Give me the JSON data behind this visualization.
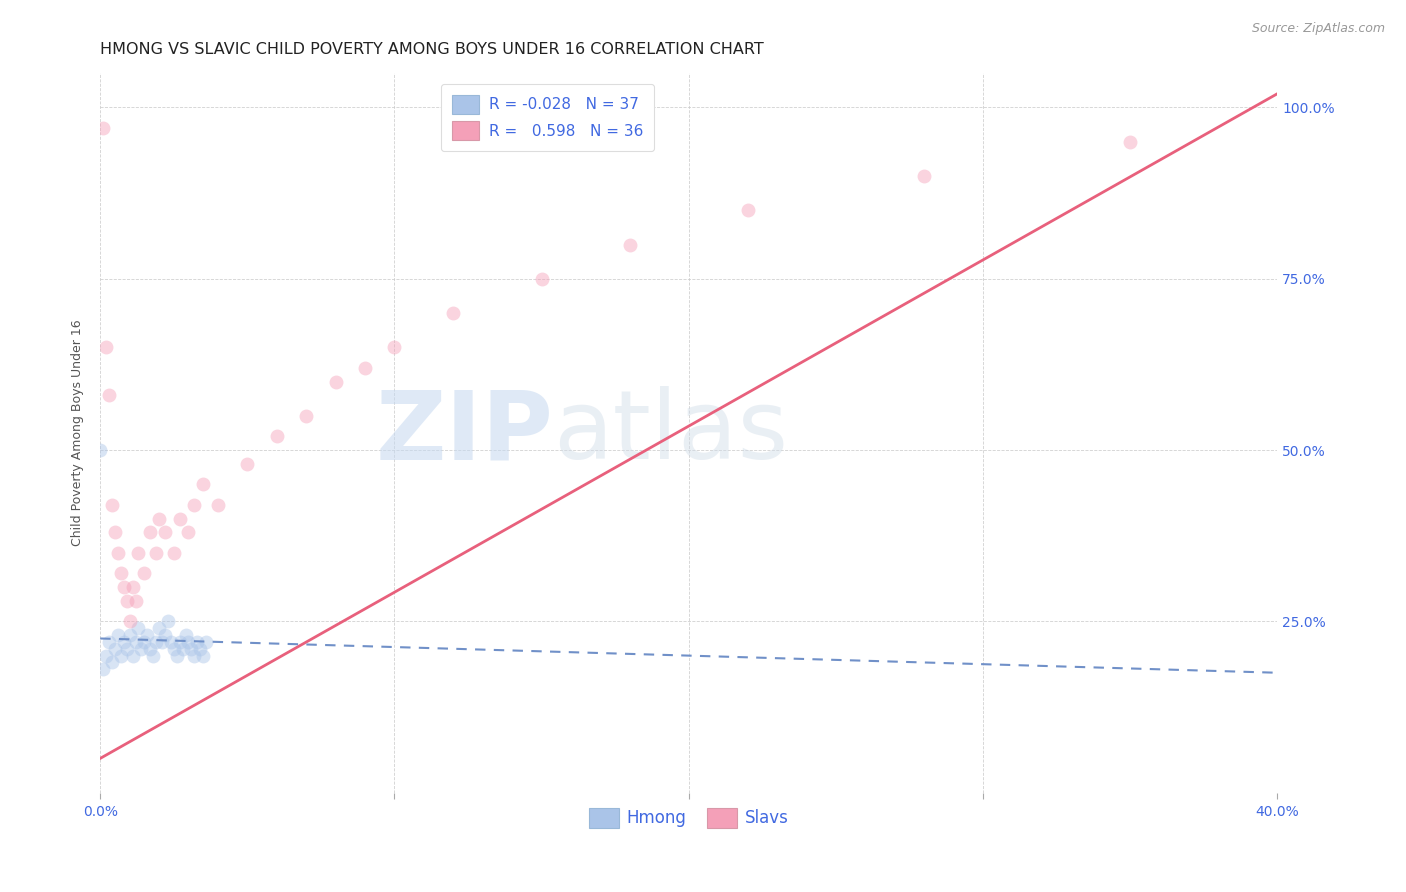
{
  "title": "HMONG VS SLAVIC CHILD POVERTY AMONG BOYS UNDER 16 CORRELATION CHART",
  "source": "Source: ZipAtlas.com",
  "ylabel": "Child Poverty Among Boys Under 16",
  "watermark_zip": "ZIP",
  "watermark_atlas": "atlas",
  "xlim": [
    0.0,
    0.4
  ],
  "ylim": [
    0.0,
    1.05
  ],
  "x_tick_positions": [
    0.0,
    0.1,
    0.2,
    0.3,
    0.4
  ],
  "x_tick_labels": [
    "0.0%",
    "",
    "",
    "",
    "40.0%"
  ],
  "y_tick_positions": [
    0.0,
    0.25,
    0.5,
    0.75,
    1.0
  ],
  "y_tick_labels": [
    "",
    "25.0%",
    "50.0%",
    "75.0%",
    "100.0%"
  ],
  "hmong_R": -0.028,
  "hmong_N": 37,
  "slavic_R": 0.598,
  "slavic_N": 36,
  "hmong_color": "#aac4e8",
  "slavic_color": "#f4a0b8",
  "hmong_line_color": "#7090c8",
  "slavic_line_color": "#e8607c",
  "legend_label_hmong": "Hmong",
  "legend_label_slavic": "Slavs",
  "hmong_x": [
    0.001,
    0.002,
    0.003,
    0.004,
    0.005,
    0.006,
    0.007,
    0.008,
    0.009,
    0.01,
    0.011,
    0.012,
    0.013,
    0.014,
    0.015,
    0.016,
    0.017,
    0.018,
    0.019,
    0.02,
    0.021,
    0.022,
    0.023,
    0.024,
    0.025,
    0.026,
    0.027,
    0.028,
    0.029,
    0.03,
    0.031,
    0.032,
    0.033,
    0.034,
    0.035,
    0.036,
    0.0
  ],
  "hmong_y": [
    0.18,
    0.2,
    0.22,
    0.19,
    0.21,
    0.23,
    0.2,
    0.22,
    0.21,
    0.23,
    0.2,
    0.22,
    0.24,
    0.21,
    0.22,
    0.23,
    0.21,
    0.2,
    0.22,
    0.24,
    0.22,
    0.23,
    0.25,
    0.22,
    0.21,
    0.2,
    0.22,
    0.21,
    0.23,
    0.22,
    0.21,
    0.2,
    0.22,
    0.21,
    0.2,
    0.22,
    0.5
  ],
  "slavic_x": [
    0.001,
    0.002,
    0.003,
    0.004,
    0.005,
    0.006,
    0.007,
    0.008,
    0.009,
    0.01,
    0.011,
    0.012,
    0.013,
    0.015,
    0.017,
    0.019,
    0.02,
    0.022,
    0.025,
    0.027,
    0.03,
    0.032,
    0.035,
    0.04,
    0.05,
    0.06,
    0.07,
    0.08,
    0.09,
    0.1,
    0.12,
    0.15,
    0.18,
    0.22,
    0.28,
    0.35
  ],
  "slavic_y": [
    0.97,
    0.65,
    0.58,
    0.42,
    0.38,
    0.35,
    0.32,
    0.3,
    0.28,
    0.25,
    0.3,
    0.28,
    0.35,
    0.32,
    0.38,
    0.35,
    0.4,
    0.38,
    0.35,
    0.4,
    0.38,
    0.42,
    0.45,
    0.42,
    0.48,
    0.52,
    0.55,
    0.6,
    0.62,
    0.65,
    0.7,
    0.75,
    0.8,
    0.85,
    0.9,
    0.95
  ],
  "background_color": "#ffffff",
  "grid_color": "#cccccc",
  "tick_color": "#4169e1",
  "title_color": "#222222",
  "title_fontsize": 11.5,
  "axis_label_fontsize": 9,
  "tick_fontsize": 10,
  "legend_fontsize": 11,
  "marker_size": 100,
  "marker_alpha": 0.45,
  "hmong_line_x0": 0.0,
  "hmong_line_x1": 0.4,
  "hmong_line_y0": 0.225,
  "hmong_line_y1": 0.175,
  "slavic_line_x0": 0.0,
  "slavic_line_x1": 0.4,
  "slavic_line_y0": 0.05,
  "slavic_line_y1": 1.02
}
